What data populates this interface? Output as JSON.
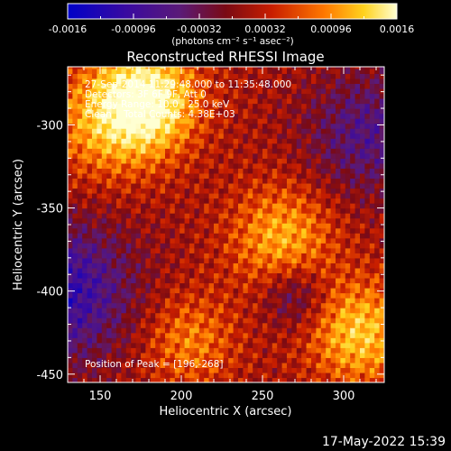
{
  "chart_data": {
    "type": "heatmap",
    "title": "Reconstructed RHESSI Image",
    "xlabel": "Heliocentric X (arcsec)",
    "ylabel": "Heliocentric Y (arcsec)",
    "xlim": [
      130,
      325
    ],
    "ylim": [
      -455,
      -265
    ],
    "x_ticks": [
      150,
      200,
      250,
      300
    ],
    "y_ticks": [
      -450,
      -400,
      -350,
      -300
    ],
    "colorbar": {
      "label": "(photons cm⁻² s⁻¹ asec⁻²)",
      "range": [
        -0.0016,
        0.0016
      ],
      "ticks": [
        "-0.0016",
        "-0.00096",
        "-0.00032",
        "0.00032",
        "0.00096",
        "0.0016"
      ]
    },
    "annotations": [
      "27-Sep-2014 11:29:48.000 to 11:35:48.000",
      "Detectors: 3F 6F 9F, Att 0",
      "Energy Range: 10.0 - 25.0 keV",
      "Clean    Total Counts: 4.38E+03"
    ],
    "peak_label": "Position of Peak = [196,-268]",
    "colors": {
      "colormap": [
        "#0000c8",
        "#3a0aa0",
        "#5a1a78",
        "#7a0a14",
        "#c81e00",
        "#ff7800",
        "#ffd21e",
        "#ffffd2"
      ]
    }
  },
  "timestamp": "17-May-2022 15:39"
}
